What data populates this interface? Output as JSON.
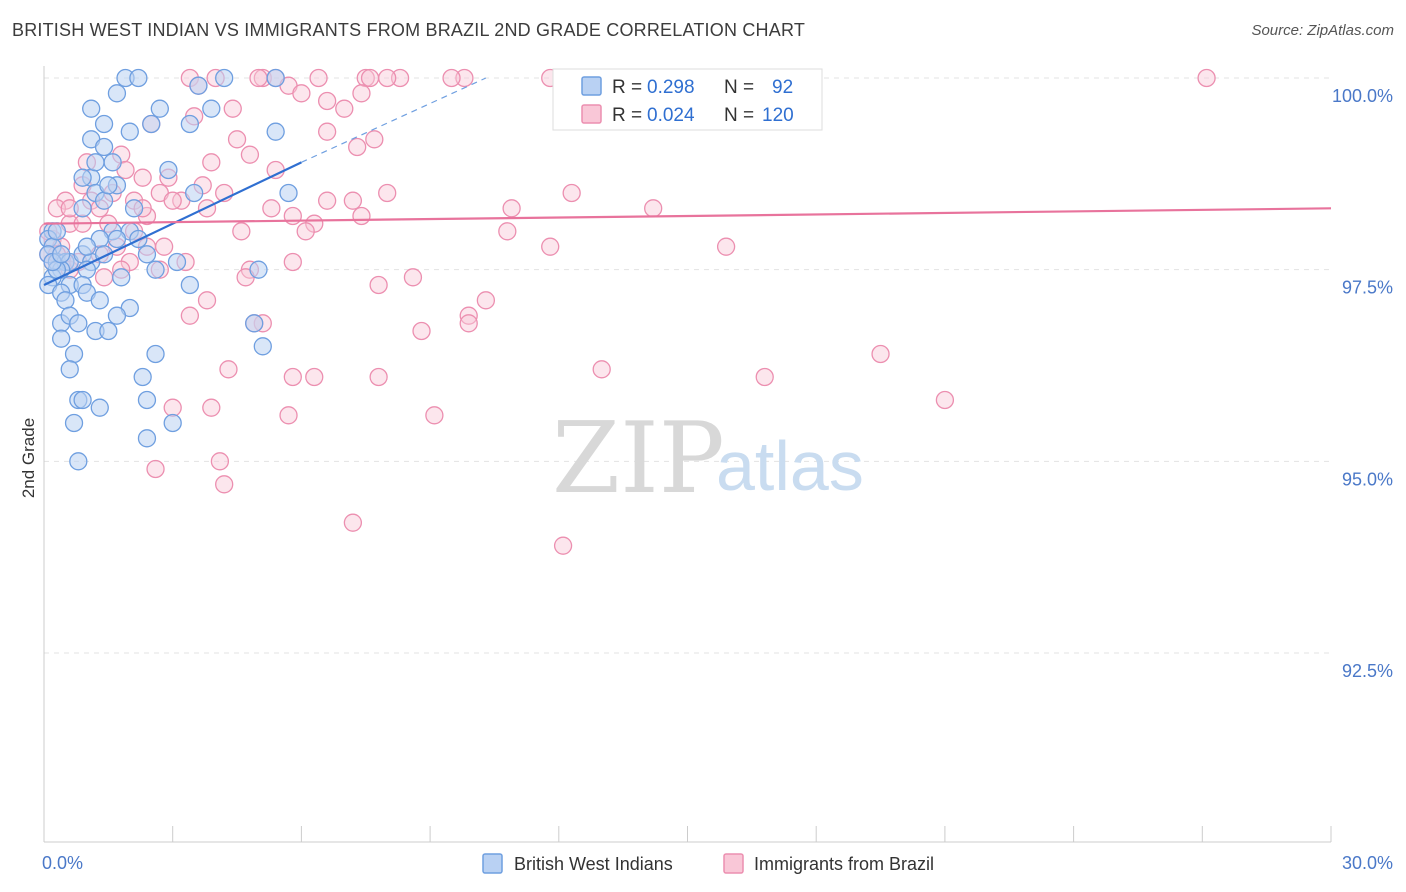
{
  "title": "BRITISH WEST INDIAN VS IMMIGRANTS FROM BRAZIL 2ND GRADE CORRELATION CHART",
  "source": "Source: ZipAtlas.com",
  "watermark": {
    "zip": "ZIP",
    "atlas": "atlas"
  },
  "legend": {
    "r_label": "R =",
    "n_label": "N =",
    "series": [
      {
        "name": "British West Indians",
        "r": "0.298",
        "n": "92",
        "color": "#6f9fe0",
        "fill": "#b9d1f3"
      },
      {
        "name": "Immigrants from Brazil",
        "r": "0.024",
        "n": "120",
        "color": "#ec8fb0",
        "fill": "#f9c7d7"
      }
    ]
  },
  "chart_data": {
    "type": "scatter",
    "title": "BRITISH WEST INDIAN VS IMMIGRANTS FROM BRAZIL 2ND GRADE CORRELATION CHART",
    "xlabel": "",
    "ylabel": "2nd Grade",
    "xlim": [
      0,
      30
    ],
    "ylim": [
      90.5,
      100.3
    ],
    "x_tick_labels": [
      "0.0%",
      "30.0%"
    ],
    "y_ticks": [
      100.0,
      97.5,
      95.0,
      92.5
    ],
    "y_tick_labels": [
      "100.0%",
      "97.5%",
      "95.0%",
      "92.5%"
    ],
    "series": [
      {
        "name": "British West Indians",
        "color": "#6f9fe0",
        "trend": {
          "x0": 0.0,
          "y0": 97.3,
          "x1": 6.0,
          "y1": 98.9,
          "dashed_to_x": 10.3,
          "dashed_to_y": 100.0
        },
        "points": [
          [
            1.9,
            100.0
          ],
          [
            2.2,
            100.0
          ],
          [
            3.6,
            99.9
          ],
          [
            4.2,
            100.0
          ],
          [
            5.4,
            100.0
          ],
          [
            1.7,
            99.8
          ],
          [
            1.1,
            99.6
          ],
          [
            2.7,
            99.6
          ],
          [
            3.9,
            99.6
          ],
          [
            1.4,
            99.4
          ],
          [
            2.0,
            99.3
          ],
          [
            3.4,
            99.4
          ],
          [
            5.4,
            99.3
          ],
          [
            2.5,
            99.4
          ],
          [
            1.1,
            99.2
          ],
          [
            1.4,
            99.1
          ],
          [
            1.6,
            98.9
          ],
          [
            1.1,
            98.7
          ],
          [
            0.9,
            98.7
          ],
          [
            1.7,
            98.6
          ],
          [
            2.9,
            98.8
          ],
          [
            1.2,
            98.5
          ],
          [
            1.4,
            98.4
          ],
          [
            0.9,
            98.3
          ],
          [
            2.1,
            98.3
          ],
          [
            3.5,
            98.5
          ],
          [
            5.7,
            98.5
          ],
          [
            0.2,
            98.0
          ],
          [
            0.1,
            97.9
          ],
          [
            0.2,
            97.8
          ],
          [
            1.6,
            98.0
          ],
          [
            2.0,
            98.0
          ],
          [
            1.3,
            97.9
          ],
          [
            1.7,
            97.9
          ],
          [
            2.2,
            97.9
          ],
          [
            2.4,
            97.7
          ],
          [
            0.1,
            97.7
          ],
          [
            0.3,
            97.6
          ],
          [
            0.5,
            97.6
          ],
          [
            0.6,
            97.6
          ],
          [
            0.9,
            97.7
          ],
          [
            1.1,
            97.6
          ],
          [
            1.4,
            97.7
          ],
          [
            0.4,
            97.5
          ],
          [
            1.0,
            97.5
          ],
          [
            0.2,
            97.4
          ],
          [
            0.3,
            97.5
          ],
          [
            3.1,
            97.6
          ],
          [
            5.0,
            97.5
          ],
          [
            2.6,
            97.5
          ],
          [
            1.8,
            97.4
          ],
          [
            0.1,
            97.3
          ],
          [
            3.4,
            97.3
          ],
          [
            0.6,
            97.3
          ],
          [
            0.9,
            97.3
          ],
          [
            0.4,
            97.2
          ],
          [
            0.5,
            97.1
          ],
          [
            1.0,
            97.2
          ],
          [
            1.3,
            97.1
          ],
          [
            2.0,
            97.0
          ],
          [
            1.7,
            96.9
          ],
          [
            0.4,
            96.8
          ],
          [
            0.6,
            96.9
          ],
          [
            0.8,
            96.8
          ],
          [
            1.2,
            96.7
          ],
          [
            4.9,
            96.8
          ],
          [
            0.4,
            96.6
          ],
          [
            1.5,
            96.7
          ],
          [
            2.6,
            96.4
          ],
          [
            5.1,
            96.5
          ],
          [
            0.7,
            96.4
          ],
          [
            0.6,
            96.2
          ],
          [
            2.3,
            96.1
          ],
          [
            0.8,
            95.8
          ],
          [
            0.9,
            95.8
          ],
          [
            2.4,
            95.8
          ],
          [
            1.3,
            95.7
          ],
          [
            0.7,
            95.5
          ],
          [
            3.0,
            95.5
          ],
          [
            2.4,
            95.3
          ],
          [
            0.8,
            95.0
          ],
          [
            0.2,
            97.6
          ],
          [
            0.4,
            97.7
          ],
          [
            1.0,
            97.8
          ],
          [
            0.3,
            98.0
          ],
          [
            1.5,
            98.6
          ],
          [
            1.2,
            98.9
          ]
        ]
      },
      {
        "name": "Immigrants from Brazil",
        "color": "#ec8fb0",
        "trend": {
          "x0": 0.0,
          "y0": 98.1,
          "x1": 30.0,
          "y1": 98.3
        },
        "points": [
          [
            3.4,
            100.0
          ],
          [
            4.0,
            100.0
          ],
          [
            5.1,
            100.0
          ],
          [
            5.4,
            100.0
          ],
          [
            6.4,
            100.0
          ],
          [
            7.5,
            100.0
          ],
          [
            8.3,
            100.0
          ],
          [
            9.8,
            100.0
          ],
          [
            11.8,
            100.0
          ],
          [
            12.9,
            100.0
          ],
          [
            16.1,
            100.0
          ],
          [
            16.4,
            100.0
          ],
          [
            27.1,
            100.0
          ],
          [
            5.7,
            99.9
          ],
          [
            6.0,
            99.8
          ],
          [
            6.6,
            99.7
          ],
          [
            7.4,
            99.8
          ],
          [
            4.4,
            99.6
          ],
          [
            7.0,
            99.6
          ],
          [
            3.5,
            99.5
          ],
          [
            2.5,
            99.4
          ],
          [
            6.6,
            99.3
          ],
          [
            4.5,
            99.2
          ],
          [
            7.7,
            99.2
          ],
          [
            4.8,
            99.0
          ],
          [
            7.3,
            99.1
          ],
          [
            1.8,
            99.0
          ],
          [
            3.9,
            98.9
          ],
          [
            5.4,
            98.8
          ],
          [
            2.3,
            98.7
          ],
          [
            2.9,
            98.7
          ],
          [
            0.9,
            98.6
          ],
          [
            3.7,
            98.6
          ],
          [
            2.7,
            98.5
          ],
          [
            1.6,
            98.5
          ],
          [
            8.0,
            98.5
          ],
          [
            12.3,
            98.5
          ],
          [
            0.5,
            98.4
          ],
          [
            1.1,
            98.4
          ],
          [
            2.1,
            98.4
          ],
          [
            3.2,
            98.4
          ],
          [
            6.6,
            98.4
          ],
          [
            7.2,
            98.4
          ],
          [
            10.9,
            98.3
          ],
          [
            14.2,
            98.3
          ],
          [
            0.3,
            98.3
          ],
          [
            1.3,
            98.3
          ],
          [
            2.4,
            98.2
          ],
          [
            3.8,
            98.3
          ],
          [
            5.3,
            98.3
          ],
          [
            7.4,
            98.2
          ],
          [
            0.6,
            98.1
          ],
          [
            0.9,
            98.1
          ],
          [
            2.1,
            98.0
          ],
          [
            4.6,
            98.0
          ],
          [
            5.8,
            98.2
          ],
          [
            6.3,
            98.1
          ],
          [
            10.8,
            98.0
          ],
          [
            11.8,
            97.8
          ],
          [
            15.9,
            97.8
          ],
          [
            0.2,
            97.9
          ],
          [
            0.4,
            97.8
          ],
          [
            1.7,
            97.8
          ],
          [
            2.8,
            97.8
          ],
          [
            0.1,
            97.7
          ],
          [
            0.5,
            97.6
          ],
          [
            1.3,
            97.7
          ],
          [
            2.0,
            97.6
          ],
          [
            2.7,
            97.5
          ],
          [
            3.3,
            97.6
          ],
          [
            4.8,
            97.5
          ],
          [
            5.8,
            97.6
          ],
          [
            0.6,
            97.5
          ],
          [
            1.8,
            97.5
          ],
          [
            4.7,
            97.4
          ],
          [
            8.6,
            97.4
          ],
          [
            7.8,
            97.3
          ],
          [
            1.4,
            97.4
          ],
          [
            10.3,
            97.1
          ],
          [
            3.8,
            97.1
          ],
          [
            3.4,
            96.9
          ],
          [
            9.9,
            96.9
          ],
          [
            9.9,
            96.8
          ],
          [
            5.1,
            96.8
          ],
          [
            4.9,
            96.8
          ],
          [
            8.8,
            96.7
          ],
          [
            19.5,
            96.4
          ],
          [
            13.0,
            96.2
          ],
          [
            4.3,
            96.2
          ],
          [
            5.8,
            96.1
          ],
          [
            6.3,
            96.1
          ],
          [
            7.8,
            96.1
          ],
          [
            16.8,
            96.1
          ],
          [
            21.0,
            95.8
          ],
          [
            3.0,
            95.7
          ],
          [
            3.9,
            95.7
          ],
          [
            5.7,
            95.6
          ],
          [
            9.1,
            95.6
          ],
          [
            2.6,
            94.9
          ],
          [
            4.1,
            95.0
          ],
          [
            4.2,
            94.7
          ],
          [
            7.2,
            94.2
          ],
          [
            12.1,
            93.9
          ],
          [
            0.2,
            97.6
          ],
          [
            0.1,
            98.0
          ],
          [
            0.6,
            98.3
          ],
          [
            1.5,
            98.1
          ],
          [
            0.3,
            97.7
          ],
          [
            2.4,
            97.8
          ],
          [
            0.8,
            97.6
          ],
          [
            3.0,
            98.4
          ],
          [
            1.9,
            98.8
          ],
          [
            4.2,
            98.5
          ],
          [
            6.1,
            98.0
          ],
          [
            8.0,
            100.0
          ],
          [
            9.5,
            100.0
          ],
          [
            5.0,
            100.0
          ],
          [
            3.6,
            99.9
          ],
          [
            7.6,
            100.0
          ],
          [
            1.0,
            98.9
          ],
          [
            2.3,
            98.3
          ]
        ]
      }
    ]
  }
}
